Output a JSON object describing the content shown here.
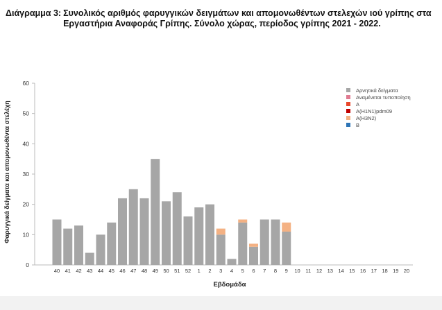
{
  "title_prefix": "Διάγραμμα 3:",
  "title_text": "Συνολικός αριθμός φαρυγγικών δειγμάτων και απομονωθέντων στελεχών ιού γρίπης στα Εργαστήρια Αναφοράς Γρίπης. Σύνολο χώρας, περίοδος γρίπης 2021 - 2022.",
  "chart_data": {
    "type": "bar",
    "stacked": true,
    "title": "",
    "xlabel": "Εβδομάδα",
    "ylabel": "Φαρυγγικά δείγματα και απομονωθέντα στελέχη",
    "ylim": [
      0,
      60
    ],
    "yticks": [
      0,
      10,
      20,
      30,
      40,
      50,
      60
    ],
    "grid": false,
    "legend_position": "top-right",
    "categories": [
      "40",
      "41",
      "42",
      "43",
      "44",
      "45",
      "46",
      "47",
      "48",
      "49",
      "50",
      "51",
      "52",
      "1",
      "2",
      "3",
      "4",
      "5",
      "6",
      "7",
      "8",
      "9",
      "10",
      "11",
      "12",
      "13",
      "14",
      "15",
      "16",
      "17",
      "18",
      "19",
      "20"
    ],
    "series": [
      {
        "name": "Αρνητικά δείγματα",
        "color": "#a6a6a6",
        "values": [
          15,
          12,
          13,
          4,
          10,
          14,
          22,
          25,
          22,
          35,
          21,
          24,
          16,
          19,
          20,
          10,
          2,
          14,
          6,
          15,
          15,
          11,
          0,
          0,
          0,
          0,
          0,
          0,
          0,
          0,
          0,
          0,
          0
        ]
      },
      {
        "name": "Αναμένεται τυποποίηση",
        "color": "#e07b91",
        "values": [
          0,
          0,
          0,
          0,
          0,
          0,
          0,
          0,
          0,
          0,
          0,
          0,
          0,
          0,
          0,
          0,
          0,
          0,
          0,
          0,
          0,
          0,
          0,
          0,
          0,
          0,
          0,
          0,
          0,
          0,
          0,
          0,
          0
        ]
      },
      {
        "name": "A",
        "color": "#e8472b",
        "values": [
          0,
          0,
          0,
          0,
          0,
          0,
          0,
          0,
          0,
          0,
          0,
          0,
          0,
          0,
          0,
          0,
          0,
          0,
          0,
          0,
          0,
          0,
          0,
          0,
          0,
          0,
          0,
          0,
          0,
          0,
          0,
          0,
          0
        ]
      },
      {
        "name": "A(H1N1)pdm09",
        "color": "#c00000",
        "values": [
          0,
          0,
          0,
          0,
          0,
          0,
          0,
          0,
          0,
          0,
          0,
          0,
          0,
          0,
          0,
          0,
          0,
          0,
          0,
          0,
          0,
          0,
          0,
          0,
          0,
          0,
          0,
          0,
          0,
          0,
          0,
          0,
          0
        ]
      },
      {
        "name": "A(H3N2)",
        "color": "#f4b183",
        "values": [
          0,
          0,
          0,
          0,
          0,
          0,
          0,
          0,
          0,
          0,
          0,
          0,
          0,
          0,
          0,
          2,
          0,
          1,
          1,
          0,
          0,
          3,
          0,
          0,
          0,
          0,
          0,
          0,
          0,
          0,
          0,
          0,
          0
        ]
      },
      {
        "name": "B",
        "color": "#2e75b6",
        "values": [
          0,
          0,
          0,
          0,
          0,
          0,
          0,
          0,
          0,
          0,
          0,
          0,
          0,
          0,
          0,
          0,
          0,
          0,
          0,
          0,
          0,
          0,
          0,
          0,
          0,
          0,
          0,
          0,
          0,
          0,
          0,
          0,
          0
        ]
      }
    ]
  }
}
